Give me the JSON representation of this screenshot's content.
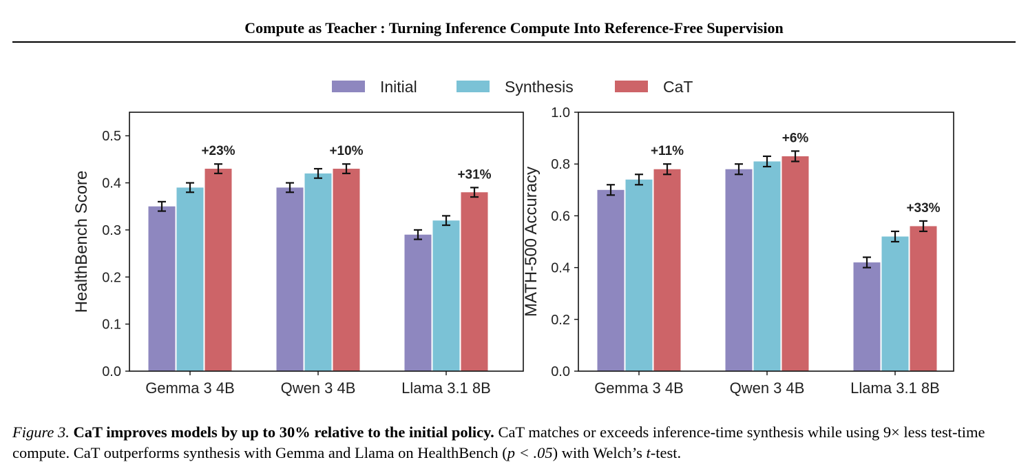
{
  "header": {
    "title": "Compute as Teacher : Turning Inference Compute Into Reference-Free Supervision"
  },
  "legend": {
    "placement": "top-center",
    "items": [
      {
        "name": "Initial",
        "color": "#8e87bf"
      },
      {
        "name": "Synthesis",
        "color": "#7bc2d6"
      },
      {
        "name": "CaT",
        "color": "#cd6468"
      }
    ]
  },
  "chart_data": [
    {
      "type": "bar",
      "categories": [
        "Gemma 3 4B",
        "Qwen 3 4B",
        "Llama 3.1 8B"
      ],
      "ylabel": "HealthBench Score",
      "xlabel": "",
      "ylim": [
        0,
        0.55
      ],
      "yticks": [
        "0.0",
        "0.1",
        "0.2",
        "0.3",
        "0.4",
        "0.5"
      ],
      "grid": false,
      "series": [
        {
          "name": "Initial",
          "values": [
            0.35,
            0.39,
            0.29
          ],
          "errors": [
            0.01,
            0.01,
            0.01
          ]
        },
        {
          "name": "Synthesis",
          "values": [
            0.39,
            0.42,
            0.32
          ],
          "errors": [
            0.01,
            0.01,
            0.01
          ]
        },
        {
          "name": "CaT",
          "values": [
            0.43,
            0.43,
            0.38
          ],
          "errors": [
            0.01,
            0.01,
            0.01
          ]
        }
      ],
      "annotations": [
        "+23%",
        "+10%",
        "+31%"
      ]
    },
    {
      "type": "bar",
      "categories": [
        "Gemma 3 4B",
        "Qwen 3 4B",
        "Llama 3.1 8B"
      ],
      "ylabel": "MATH-500 Accuracy",
      "xlabel": "",
      "ylim": [
        0,
        1.0
      ],
      "yticks": [
        "0.0",
        "0.2",
        "0.4",
        "0.6",
        "0.8",
        "1.0"
      ],
      "grid": false,
      "series": [
        {
          "name": "Initial",
          "values": [
            0.7,
            0.78,
            0.42
          ],
          "errors": [
            0.02,
            0.02,
            0.02
          ]
        },
        {
          "name": "Synthesis",
          "values": [
            0.74,
            0.81,
            0.52
          ],
          "errors": [
            0.02,
            0.02,
            0.02
          ]
        },
        {
          "name": "CaT",
          "values": [
            0.78,
            0.83,
            0.56
          ],
          "errors": [
            0.02,
            0.02,
            0.02
          ]
        }
      ],
      "annotations": [
        "+11%",
        "+6%",
        "+33%"
      ]
    }
  ],
  "caption": {
    "label": "Figure 3.",
    "lead": "CaT improves models by up to 30% relative to the initial policy.",
    "text_part1": "CaT matches or exceeds inference-time synthesis while using 9× less test-time compute. CaT outperforms synthesis with Gemma and Llama on HealthBench (",
    "p_expr": "p < .05",
    "text_part2": ") with Welch’s ",
    "t_symbol": "t",
    "text_part3": "-test."
  }
}
